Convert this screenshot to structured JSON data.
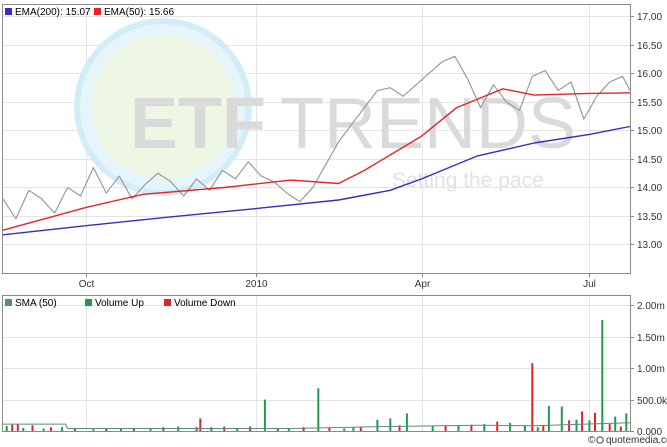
{
  "watermark": {
    "brand_bold": "ETF",
    "brand_light": "TRENDS",
    "tagline": "Setting the pace"
  },
  "credit": {
    "copyright": "©",
    "brand": "quotemedia.com"
  },
  "colors": {
    "ema200": "#3b2bc4",
    "ema50": "#e3262b",
    "price": "#9a9a9a",
    "volume_up": "#1f9a4e",
    "volume_down": "#d9262b",
    "sma50": "#5c8a8a",
    "grid": "#e4e4e4"
  },
  "chart_data": [
    {
      "type": "line",
      "name": "price-panel",
      "legend": [
        {
          "key": "ema200",
          "label": "EMA(200): 15.07"
        },
        {
          "key": "ema50",
          "label": "EMA(50): 15.66"
        }
      ],
      "x_range": [
        "2009-08-17",
        "2010-07-23"
      ],
      "x_ticks": [
        {
          "date": "2009-10-01",
          "label": "Oct"
        },
        {
          "date": "2010-01-01",
          "label": "2010"
        },
        {
          "date": "2010-04-01",
          "label": "Apr"
        },
        {
          "date": "2010-07-01",
          "label": "Jul"
        }
      ],
      "ylim": [
        12.5,
        17.2
      ],
      "y_ticks": [
        {
          "value": 13.0,
          "label": "13.00"
        },
        {
          "value": 13.5,
          "label": "13.50"
        },
        {
          "value": 14.0,
          "label": "14.00"
        },
        {
          "value": 14.5,
          "label": "14.50"
        },
        {
          "value": 15.0,
          "label": "15.00"
        },
        {
          "value": 15.5,
          "label": "15.50"
        },
        {
          "value": 16.0,
          "label": "16.00"
        },
        {
          "value": 16.5,
          "label": "16.50"
        },
        {
          "value": 17.0,
          "label": "17.00"
        }
      ],
      "series": [
        {
          "key": "ema200",
          "x": [
            "2009-08-17",
            "2009-10-01",
            "2009-11-15",
            "2010-01-01",
            "2010-02-15",
            "2010-03-15",
            "2010-04-01",
            "2010-05-01",
            "2010-06-01",
            "2010-07-01",
            "2010-07-23"
          ],
          "y": [
            13.17,
            13.33,
            13.48,
            13.63,
            13.78,
            13.95,
            14.15,
            14.55,
            14.78,
            14.93,
            15.07
          ]
        },
        {
          "key": "ema50",
          "x": [
            "2009-08-17",
            "2009-10-01",
            "2009-11-01",
            "2009-12-15",
            "2010-01-20",
            "2010-02-15",
            "2010-03-01",
            "2010-04-01",
            "2010-04-20",
            "2010-05-15",
            "2010-06-01",
            "2010-07-01",
            "2010-07-23"
          ],
          "y": [
            13.25,
            13.65,
            13.88,
            14.0,
            14.13,
            14.07,
            14.3,
            14.9,
            15.4,
            15.73,
            15.62,
            15.65,
            15.66
          ]
        },
        {
          "key": "price",
          "x": [
            "2009-08-17",
            "2009-08-24",
            "2009-08-31",
            "2009-09-07",
            "2009-09-14",
            "2009-09-21",
            "2009-09-28",
            "2009-10-05",
            "2009-10-12",
            "2009-10-19",
            "2009-10-26",
            "2009-11-02",
            "2009-11-09",
            "2009-11-16",
            "2009-11-23",
            "2009-11-30",
            "2009-12-07",
            "2009-12-14",
            "2009-12-21",
            "2009-12-28",
            "2010-01-04",
            "2010-01-11",
            "2010-01-18",
            "2010-01-25",
            "2010-02-01",
            "2010-02-08",
            "2010-02-15",
            "2010-02-22",
            "2010-03-01",
            "2010-03-08",
            "2010-03-15",
            "2010-03-22",
            "2010-03-29",
            "2010-04-05",
            "2010-04-12",
            "2010-04-19",
            "2010-04-26",
            "2010-05-03",
            "2010-05-10",
            "2010-05-17",
            "2010-05-24",
            "2010-05-31",
            "2010-06-07",
            "2010-06-14",
            "2010-06-21",
            "2010-06-28",
            "2010-07-05",
            "2010-07-12",
            "2010-07-19",
            "2010-07-23"
          ],
          "y": [
            13.8,
            13.45,
            13.95,
            13.8,
            13.55,
            14.0,
            13.85,
            14.35,
            13.9,
            14.2,
            13.8,
            14.05,
            14.25,
            14.1,
            13.85,
            14.15,
            13.95,
            14.3,
            14.15,
            14.45,
            14.2,
            14.1,
            13.9,
            13.75,
            14.0,
            14.4,
            14.8,
            15.1,
            15.4,
            15.7,
            15.75,
            15.6,
            15.8,
            16.0,
            16.2,
            16.3,
            15.9,
            15.4,
            15.8,
            15.5,
            15.35,
            15.95,
            16.05,
            15.7,
            15.85,
            15.2,
            15.6,
            15.85,
            15.95,
            15.7
          ]
        }
      ]
    },
    {
      "type": "bar",
      "name": "volume-panel",
      "legend": [
        {
          "key": "sma50",
          "label": "SMA (50)"
        },
        {
          "key": "volume_up",
          "label": "Volume Up"
        },
        {
          "key": "volume_down",
          "label": "Volume Down"
        }
      ],
      "ylim": [
        0,
        2150000
      ],
      "y_ticks": [
        {
          "value": 0,
          "label": "0.000"
        },
        {
          "value": 500000,
          "label": "500.0k"
        },
        {
          "value": 1000000,
          "label": "1.00m"
        },
        {
          "value": 1500000,
          "label": "1.50m"
        },
        {
          "value": 2000000,
          "label": "2.00m"
        }
      ],
      "sma50": {
        "x": [
          "2009-08-17",
          "2009-09-20",
          "2009-09-21",
          "2009-10-10",
          "2010-01-20",
          "2010-03-10",
          "2010-05-01",
          "2010-06-01",
          "2010-07-23"
        ],
        "y": [
          110000,
          110000,
          40000,
          40000,
          40000,
          70000,
          90000,
          85000,
          130000
        ]
      },
      "volume_up": {
        "x": [
          "2009-08-19",
          "2009-08-28",
          "2009-09-08",
          "2009-09-18",
          "2009-10-05",
          "2009-10-20",
          "2009-11-05",
          "2009-11-20",
          "2009-12-08",
          "2009-12-22",
          "2010-01-06",
          "2010-01-19",
          "2010-02-04",
          "2010-02-18",
          "2010-02-23",
          "2010-03-08",
          "2010-03-15",
          "2010-03-24",
          "2010-04-07",
          "2010-04-21",
          "2010-05-05",
          "2010-05-19",
          "2010-05-27",
          "2010-06-03",
          "2010-06-09",
          "2010-06-16",
          "2010-06-24",
          "2010-07-01",
          "2010-07-08",
          "2010-07-15",
          "2010-07-21"
        ],
        "y": [
          80000,
          50000,
          40000,
          60000,
          30000,
          40000,
          50000,
          70000,
          60000,
          40000,
          500000,
          50000,
          680000,
          40000,
          60000,
          180000,
          200000,
          280000,
          80000,
          90000,
          110000,
          130000,
          80000,
          60000,
          400000,
          390000,
          180000,
          170000,
          1770000,
          230000,
          280000
        ]
      },
      "volume_down": {
        "x": [
          "2009-08-22",
          "2009-08-25",
          "2009-09-02",
          "2009-09-12",
          "2009-09-25",
          "2009-10-12",
          "2009-10-27",
          "2009-11-12",
          "2009-11-30",
          "2009-12-02",
          "2009-12-15",
          "2009-12-29",
          "2010-01-13",
          "2010-01-27",
          "2010-02-10",
          "2010-02-27",
          "2010-03-20",
          "2010-04-14",
          "2010-04-28",
          "2010-05-12",
          "2010-05-31",
          "2010-06-06",
          "2010-06-20",
          "2010-06-27",
          "2010-07-04",
          "2010-07-12",
          "2010-07-18"
        ],
        "y": [
          100000,
          110000,
          90000,
          60000,
          50000,
          40000,
          50000,
          60000,
          60000,
          200000,
          70000,
          70000,
          50000,
          60000,
          60000,
          70000,
          90000,
          90000,
          100000,
          150000,
          1080000,
          90000,
          170000,
          310000,
          290000,
          110000,
          70000
        ]
      }
    }
  ]
}
